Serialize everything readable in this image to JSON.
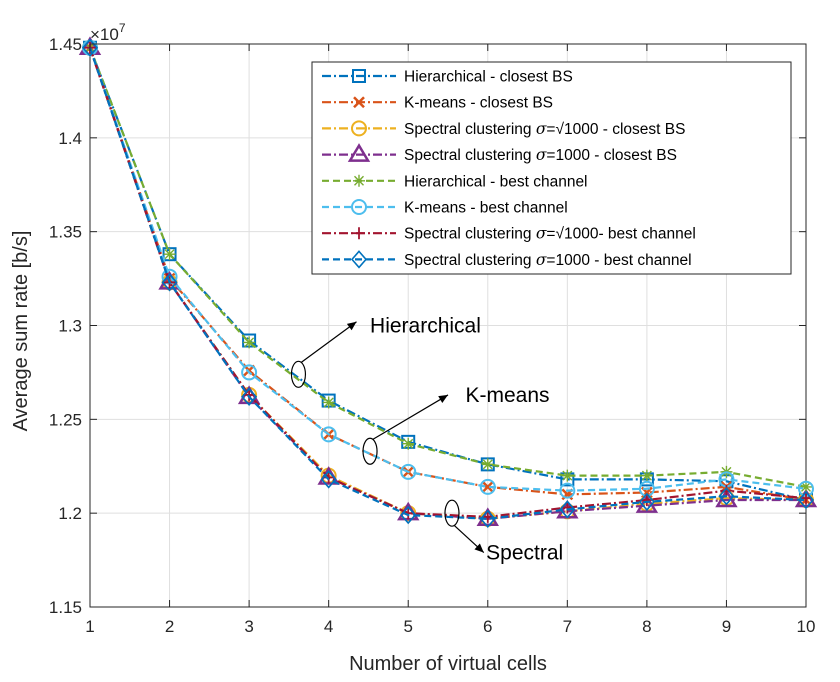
{
  "chart_data": {
    "type": "line",
    "xlabel": "Number of virtual cells",
    "ylabel": "Average sum rate [b/s]",
    "exponent_label": "×10",
    "exponent_power": "7",
    "x": [
      1,
      2,
      3,
      4,
      5,
      6,
      7,
      8,
      9,
      10
    ],
    "xlim": [
      1,
      10
    ],
    "ylim": [
      1.15,
      1.45
    ],
    "xticks": [
      1,
      2,
      3,
      4,
      5,
      6,
      7,
      8,
      9,
      10
    ],
    "xtick_labels": [
      "1",
      "2",
      "3",
      "4",
      "5",
      "6",
      "7",
      "8",
      "9",
      "10"
    ],
    "yticks": [
      1.15,
      1.2,
      1.25,
      1.3,
      1.35,
      1.4,
      1.45
    ],
    "ytick_labels": [
      "1.15",
      "1.2",
      "1.25",
      "1.3",
      "1.35",
      "1.4",
      "1.45"
    ],
    "grid": true,
    "legend_position": "top-right",
    "series": [
      {
        "name_pre": "Hierarchical - closest BS",
        "name_sigma": "",
        "name_post": "",
        "color": "#0072BD",
        "dash": "dashdot",
        "marker": "square",
        "values": [
          1.448,
          1.338,
          1.292,
          1.26,
          1.238,
          1.226,
          1.218,
          1.218,
          1.217,
          1.207
        ]
      },
      {
        "name_pre": "K-means - closest BS",
        "name_sigma": "",
        "name_post": "",
        "color": "#D95319",
        "dash": "dashdot",
        "marker": "x",
        "values": [
          1.448,
          1.325,
          1.276,
          1.242,
          1.222,
          1.214,
          1.21,
          1.211,
          1.214,
          1.207
        ]
      },
      {
        "name_pre": "Spectral clustering ",
        "name_sigma": "σ",
        "name_post": "=√1000 - closest BS",
        "color": "#EDB120",
        "dash": "dashdot",
        "marker": "circle",
        "values": [
          1.448,
          1.323,
          1.263,
          1.22,
          1.2,
          1.197,
          1.201,
          1.205,
          1.208,
          1.207
        ]
      },
      {
        "name_pre": "Spectral clustering ",
        "name_sigma": "σ",
        "name_post": "=1000 - closest BS",
        "color": "#7E2F8E",
        "dash": "dashdot",
        "marker": "triangle",
        "values": [
          1.448,
          1.323,
          1.262,
          1.219,
          1.2,
          1.197,
          1.201,
          1.204,
          1.207,
          1.207
        ]
      },
      {
        "name_pre": "Hierarchical - best channel",
        "name_sigma": "",
        "name_post": "",
        "color": "#77AC30",
        "dash": "dashed",
        "marker": "asterisk",
        "values": [
          1.448,
          1.338,
          1.291,
          1.259,
          1.237,
          1.226,
          1.22,
          1.22,
          1.222,
          1.214
        ]
      },
      {
        "name_pre": "K-means - best channel",
        "name_sigma": "",
        "name_post": "",
        "color": "#4DBEEE",
        "dash": "dashed",
        "marker": "circle",
        "values": [
          1.448,
          1.326,
          1.275,
          1.242,
          1.222,
          1.214,
          1.212,
          1.213,
          1.218,
          1.213
        ]
      },
      {
        "name_pre": "Spectral clustering ",
        "name_sigma": "σ",
        "name_post": "=√1000- best channel",
        "color": "#A2142F",
        "dash": "dashdot",
        "marker": "plus",
        "values": [
          1.448,
          1.323,
          1.263,
          1.219,
          1.2,
          1.198,
          1.203,
          1.207,
          1.212,
          1.208
        ]
      },
      {
        "name_pre": "Spectral clustering ",
        "name_sigma": "σ",
        "name_post": "=1000 - best channel",
        "color": "#0072BD",
        "dash": "dashed",
        "marker": "diamond",
        "values": [
          1.448,
          1.323,
          1.262,
          1.218,
          1.199,
          1.197,
          1.202,
          1.206,
          1.209,
          1.207
        ]
      }
    ],
    "annotations": [
      {
        "text": "Hierarchical",
        "ellipse": {
          "x": 3.62,
          "y": 1.274
        },
        "arrow_to": {
          "x": 4.35,
          "y": 1.302
        },
        "text_at": {
          "x": 4.52,
          "y": 1.3
        }
      },
      {
        "text": "K-means",
        "ellipse": {
          "x": 4.52,
          "y": 1.233
        },
        "arrow_to": {
          "x": 5.5,
          "y": 1.263
        },
        "text_at": {
          "x": 5.72,
          "y": 1.263
        }
      },
      {
        "text": "Spectral",
        "ellipse": {
          "x": 5.55,
          "y": 1.2
        },
        "arrow_to": {
          "x": 5.95,
          "y": 1.179
        },
        "text_at": {
          "x": 5.98,
          "y": 1.179
        }
      }
    ]
  }
}
